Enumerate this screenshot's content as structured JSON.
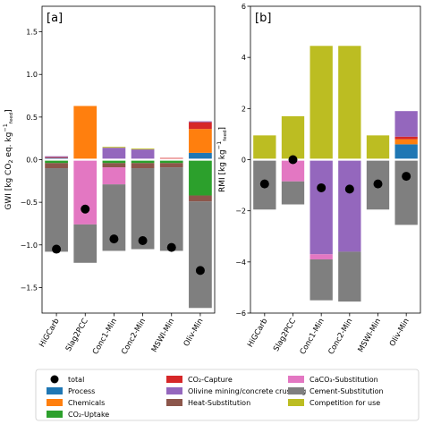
{
  "chart_data": [
    {
      "type": "bar",
      "panel_label": "[a]",
      "ylabel": "GWI [kg CO2 eq. kg−1 feed]",
      "ylabel_parts": {
        "main": "GWI [kg CO",
        "sub": "2",
        "mid": " eq. kg",
        "sup": "−1",
        "supsub": "feed",
        "end": "]"
      },
      "ylim": [
        -1.8,
        1.8
      ],
      "yticks": [
        -1.5,
        -1.0,
        -0.5,
        0.0,
        0.5,
        1.0,
        1.5
      ],
      "ytick_labels": [
        "−1.5",
        "−1.0",
        "−0.5",
        "0.0",
        "0.5",
        "1.0",
        "1.5"
      ],
      "categories": [
        "HiGCarb",
        "Slag2PCC",
        "Conc1-Min",
        "Conc2-Min",
        "MSWI-Min",
        "Oliv-Min"
      ],
      "series": [
        {
          "name": "Process",
          "values": [
            0.02,
            0.0,
            0.0,
            0.0,
            0.0,
            0.08
          ]
        },
        {
          "name": "Chemicals",
          "values": [
            0.0,
            0.63,
            0.0,
            0.0,
            0.0,
            0.28
          ]
        },
        {
          "name": "CO₂-Uptake",
          "values": [
            -0.04,
            -0.01,
            -0.04,
            -0.04,
            -0.04,
            -0.42
          ]
        },
        {
          "name": "CO₂-Capture",
          "values": [
            0.01,
            0.0,
            0.0,
            0.0,
            0.02,
            0.08
          ]
        },
        {
          "name": "Olivine mining/concrete crushing",
          "values": [
            0.01,
            0.0,
            0.14,
            0.12,
            0.0,
            0.01
          ]
        },
        {
          "name": "Heat-Substitution",
          "values": [
            -0.06,
            0.0,
            -0.05,
            -0.06,
            -0.05,
            -0.07
          ]
        },
        {
          "name": "CaCO₃-Substitution",
          "values": [
            0.0,
            -0.75,
            -0.2,
            0.0,
            0.0,
            0.0
          ]
        },
        {
          "name": "Cement-Substitution",
          "values": [
            -0.98,
            -0.45,
            -0.78,
            -0.95,
            -0.98,
            -1.25
          ]
        },
        {
          "name": "Competition for use",
          "values": [
            0.0,
            0.0,
            0.01,
            0.01,
            0.0,
            0.0
          ]
        }
      ],
      "total": [
        -1.05,
        -0.58,
        -0.93,
        -0.95,
        -1.03,
        -1.3
      ]
    },
    {
      "type": "bar",
      "panel_label": "[b]",
      "ylabel": "RMI [kg kg−1 feed]",
      "ylabel_parts": {
        "main": "RMI [kg kg",
        "sup": "−1",
        "supsub": "feed",
        "end": "]"
      },
      "ylim": [
        -6,
        6
      ],
      "yticks": [
        -6,
        -4,
        -2,
        0,
        2,
        4,
        6
      ],
      "ytick_labels": [
        "−6",
        "−4",
        "−2",
        "0",
        "2",
        "4",
        "6"
      ],
      "categories": [
        "HiGCarb",
        "Slag2PCC",
        "Conc1-Min",
        "Conc2-Min",
        "MSWI-Min",
        "Oliv-Min"
      ],
      "series": [
        {
          "name": "Process",
          "values": [
            0.0,
            0.0,
            0.0,
            0.0,
            0.0,
            0.6
          ]
        },
        {
          "name": "Chemicals",
          "values": [
            0.0,
            0.0,
            0.0,
            0.0,
            0.0,
            0.2
          ]
        },
        {
          "name": "CO₂-Uptake",
          "values": [
            0.0,
            0.0,
            0.0,
            0.0,
            0.0,
            0.0
          ]
        },
        {
          "name": "CO₂-Capture",
          "values": [
            0.0,
            0.0,
            0.0,
            0.0,
            0.0,
            0.1
          ]
        },
        {
          "name": "Olivine mining/concrete crushing",
          "values": [
            0.0,
            0.0,
            -3.7,
            -3.6,
            0.0,
            1.0
          ]
        },
        {
          "name": "Heat-Substitution",
          "values": [
            0.0,
            0.0,
            0.0,
            0.0,
            0.0,
            0.0
          ]
        },
        {
          "name": "CaCO₃-Substitution",
          "values": [
            0.0,
            -0.85,
            -0.2,
            0.0,
            0.0,
            0.0
          ]
        },
        {
          "name": "Cement-Substitution",
          "values": [
            -1.95,
            -0.9,
            -1.6,
            -1.95,
            -1.95,
            -2.55
          ]
        },
        {
          "name": "Competition for use",
          "values": [
            0.95,
            1.7,
            4.45,
            4.45,
            0.95,
            0.0
          ]
        }
      ],
      "total": [
        -0.95,
        0.0,
        -1.1,
        -1.15,
        -0.95,
        -0.65
      ]
    }
  ],
  "legend": {
    "entries": [
      {
        "name": "total",
        "kind": "marker"
      },
      {
        "name": "Process",
        "kind": "patch"
      },
      {
        "name": "Chemicals",
        "kind": "patch"
      },
      {
        "name": "CO₂-Uptake",
        "kind": "patch"
      },
      {
        "name": "CO₂-Capture",
        "kind": "patch"
      },
      {
        "name": "Olivine mining/concrete crushing",
        "kind": "patch"
      },
      {
        "name": "Heat-Substitution",
        "kind": "patch"
      },
      {
        "name": "CaCO₃-Substitution",
        "kind": "patch"
      },
      {
        "name": "Cement-Substitution",
        "kind": "patch"
      },
      {
        "name": "Competition for use",
        "kind": "patch"
      }
    ],
    "placement": "bottom"
  },
  "colors": {
    "Process": "#1f77b4",
    "Chemicals": "#ff7f0e",
    "CO₂-Uptake": "#2ca02c",
    "CO₂-Capture": "#d62728",
    "Olivine mining/concrete crushing": "#9467bd",
    "Heat-Substitution": "#8c564b",
    "CaCO₃-Substitution": "#e377c2",
    "Cement-Substitution": "#7f7f7f",
    "Competition for use": "#bcbd22",
    "total": "#000000"
  }
}
